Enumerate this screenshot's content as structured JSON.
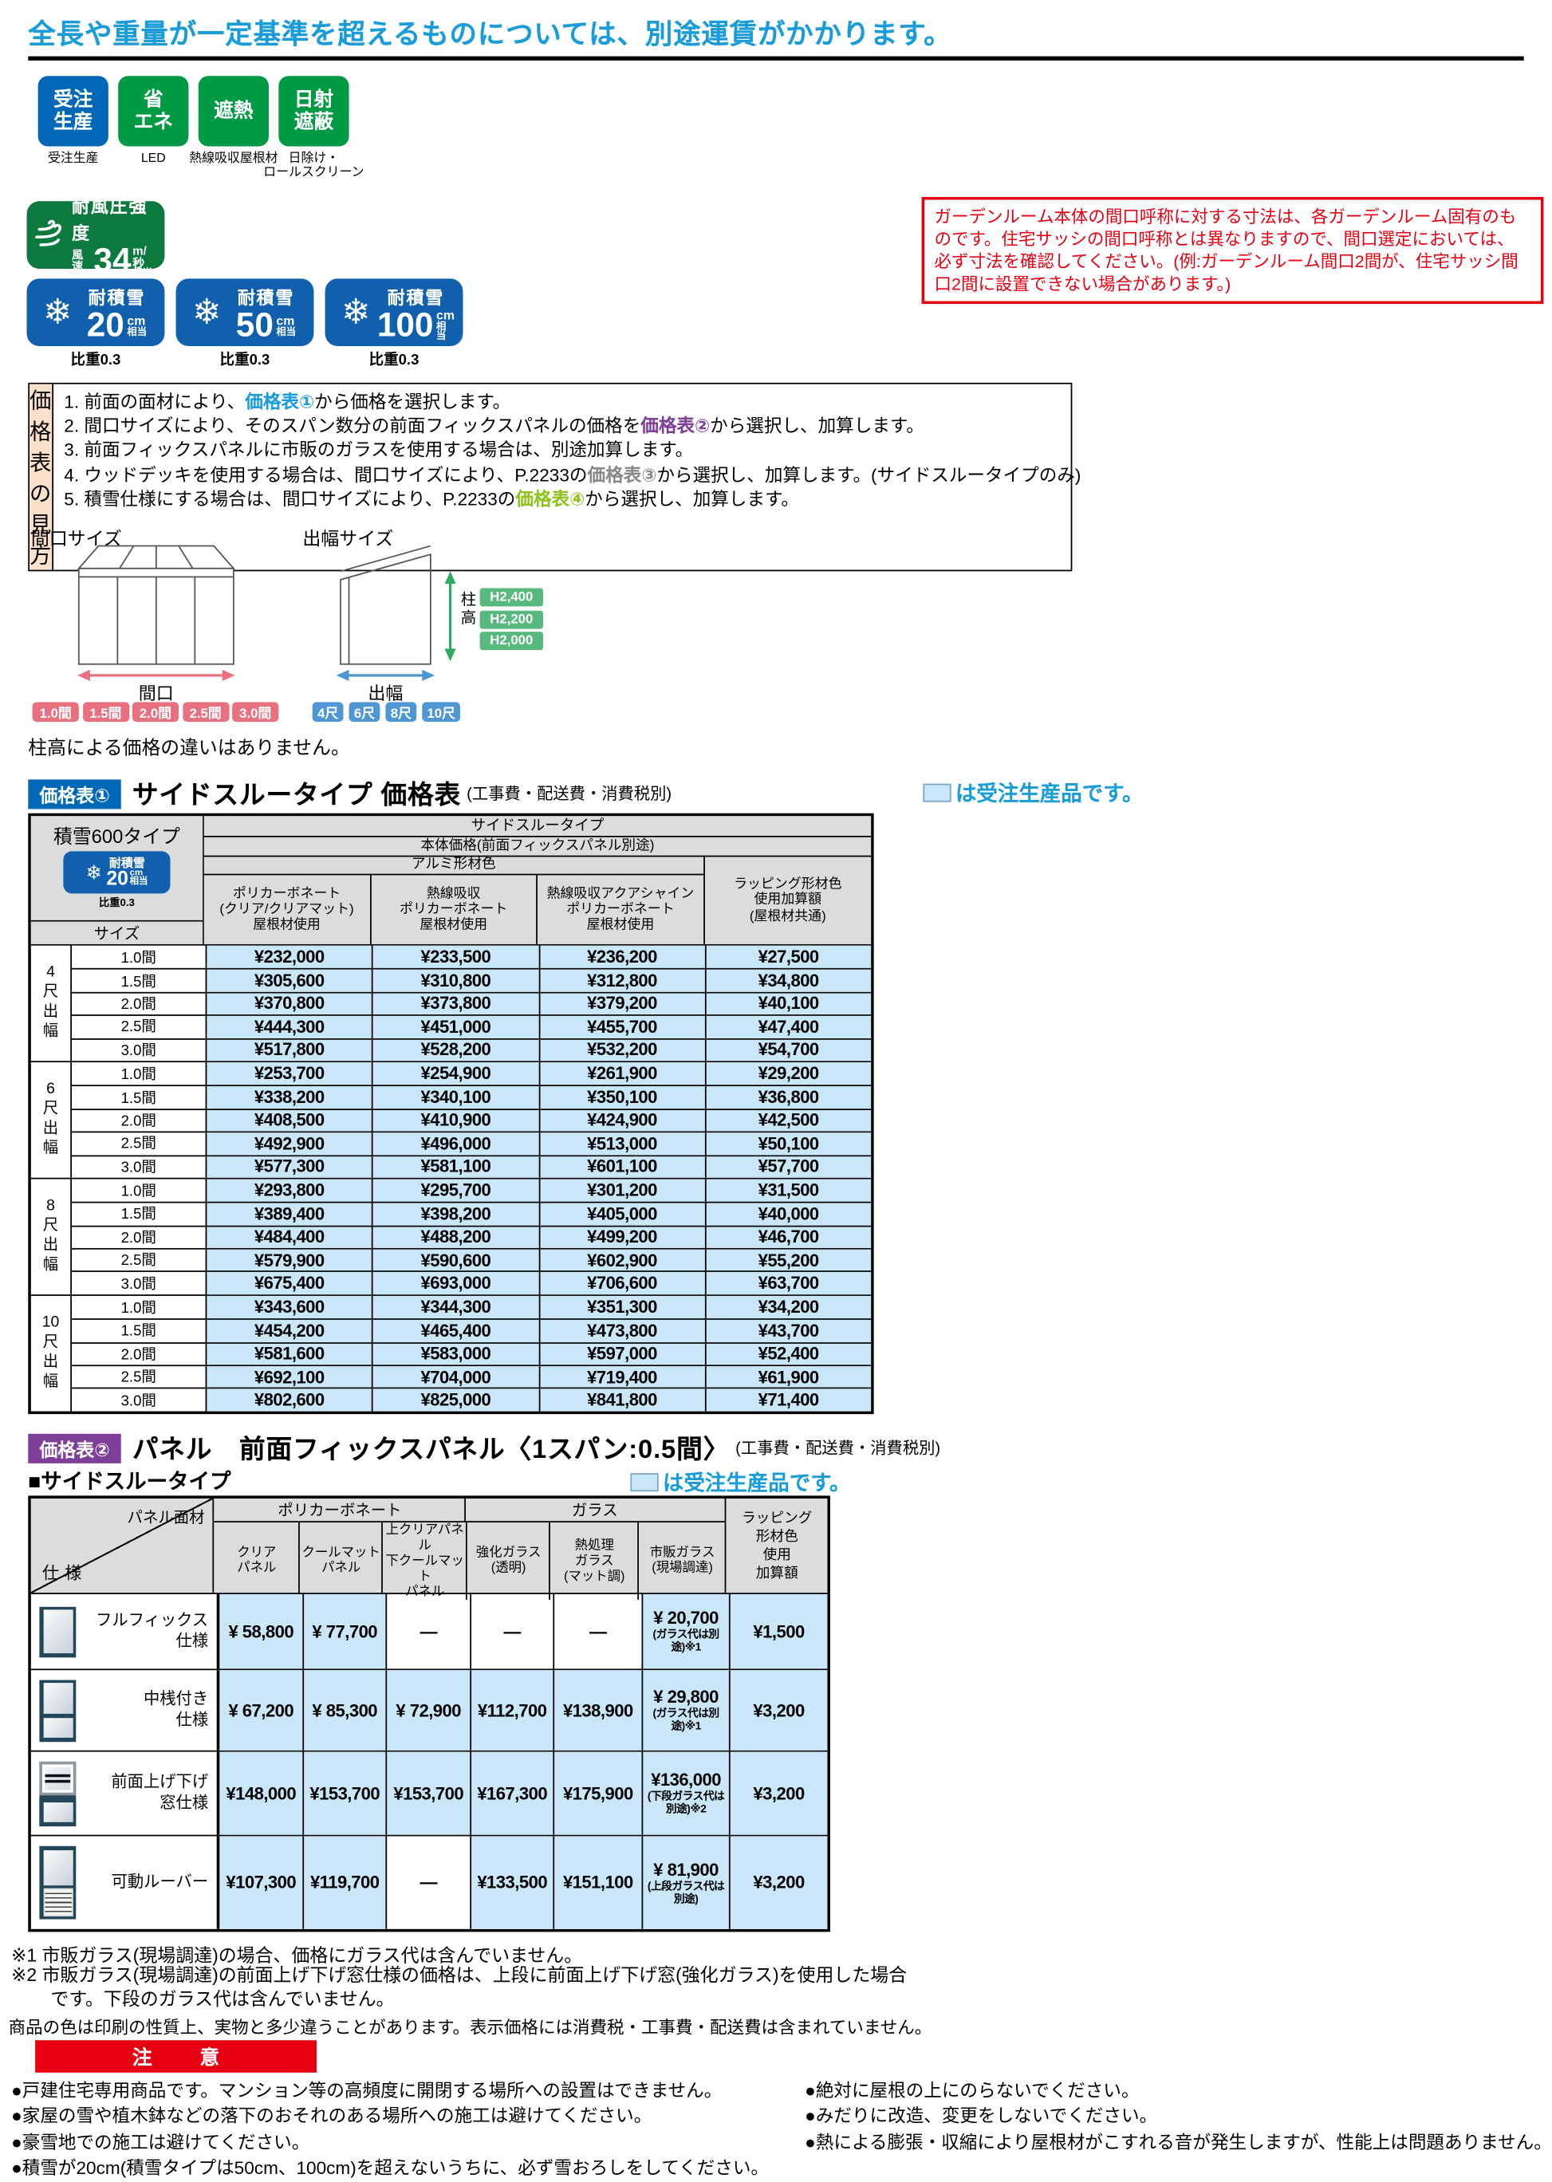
{
  "top_notice": "全長や重量が一定基準を超えるものについては、別途運賃がかかります。",
  "colors": {
    "accent_blue": "#1a9cd8",
    "badge_blue": "#0068b7",
    "badge_green": "#009944",
    "wind_green": "#0c7a3f",
    "snow_blue": "#1060ae",
    "made_to_order_bg": "#c9e7f8",
    "table_header_bg": "#dcdcdc",
    "notice_red": "#e60012",
    "guide_label_bg": "#fbe0ca",
    "chip_pink": "#e8707f",
    "chip_blue": "#4e97d3",
    "chip_green": "#57b97e",
    "badge_purple": "#7d3f98"
  },
  "features": [
    {
      "badge_lines": [
        "受注",
        "生産"
      ],
      "label_lines": [
        "受注生産"
      ],
      "color": "#0068b7"
    },
    {
      "badge_lines": [
        "省",
        "エネ"
      ],
      "label_lines": [
        "LED"
      ],
      "color": "#009944"
    },
    {
      "badge_lines": [
        "遮熱"
      ],
      "label_lines": [
        "熱線吸収屋根材"
      ],
      "color": "#009944"
    },
    {
      "badge_lines": [
        "日射",
        "遮蔽"
      ],
      "label_lines": [
        "日除け・",
        "ロールスクリーン"
      ],
      "color": "#009944"
    }
  ],
  "wind_badge": {
    "title": "耐風圧強度",
    "prefix": "風速",
    "value": "34",
    "unit": "m/秒",
    "suffix": "相当"
  },
  "warning_box": "ガーデンルーム本体の間口呼称に対する寸法は、各ガーデンルーム固有のものです。住宅サッシの間口呼称とは異なりますので、間口選定においては、必ず寸法を確認してください。(例:ガーデンルーム間口2間が、住宅サッシ間口2間に設置できない場合があります。)",
  "snow_badges": [
    {
      "title": "耐積雪",
      "value": "20",
      "unit": "cm",
      "suffix": "相当",
      "note": "比重0.3"
    },
    {
      "title": "耐積雪",
      "value": "50",
      "unit": "cm",
      "suffix": "相当",
      "note": "比重0.3"
    },
    {
      "title": "耐積雪",
      "value": "100",
      "unit": "cm",
      "suffix": "相当",
      "note": "比重0.3"
    }
  ],
  "guide": {
    "label": "価格表の見方",
    "lines": [
      [
        {
          "t": "1. 前面の面材により、"
        },
        {
          "t": "価格表①",
          "c": "#1a9cd8"
        },
        {
          "t": "から価格を選択します。"
        }
      ],
      [
        {
          "t": "2. 間口サイズにより、そのスパン数分の前面フィックスパネルの価格を"
        },
        {
          "t": "価格表②",
          "c": "#7d3f98"
        },
        {
          "t": "から選択し、加算します。"
        }
      ],
      [
        {
          "t": "3. 前面フィックスパネルに市販のガラスを使用する場合は、別途加算します。"
        }
      ],
      [
        {
          "t": "4. ウッドデッキを使用する場合は、間口サイズにより、P.2233の"
        },
        {
          "t": "価格表③",
          "c": "#898989"
        },
        {
          "t": "から選択し、加算します。(サイドスルータイプのみ)"
        }
      ],
      [
        {
          "t": "5. 積雪仕様にする場合は、間口サイズにより、P.2233の"
        },
        {
          "t": "価格表④",
          "c": "#8fc31f"
        },
        {
          "t": "から選択し、加算します。"
        }
      ]
    ]
  },
  "diagram": {
    "maguchi_title": "間口サイズ",
    "deba_title": "出幅サイズ",
    "maguchi_label": "間口",
    "deba_label": "出幅",
    "hashira_label": "柱高",
    "maguchi_chips": [
      "1.0間",
      "1.5間",
      "2.0間",
      "2.5間",
      "3.0間"
    ],
    "deba_chips": [
      "4尺",
      "6尺",
      "8尺",
      "10尺"
    ],
    "height_chips": [
      "H2,400",
      "H2,200",
      "H2,000"
    ],
    "note": "柱高による価格の違いはありません。"
  },
  "table1": {
    "badge": "価格表①",
    "title": "サイドスルータイプ 価格表",
    "title_note": "(工事費・配送費・消費税別)",
    "legend": "は受注生産品です。",
    "corner": "積雪600タイプ",
    "corner_note": "比重0.3",
    "mini_badge": {
      "title": "耐積雪",
      "value": "20",
      "unit": "cm",
      "suffix": "相当"
    },
    "size_label": "サイズ",
    "head_rows": [
      "サイドスルータイプ",
      "本体価格(前面フィックスパネル別途)",
      "アルミ形材色"
    ],
    "columns": [
      [
        "ポリカーボネート",
        "(クリア/クリアマット)",
        "屋根材使用"
      ],
      [
        "熱線吸収",
        "ポリカーボネート",
        "屋根材使用"
      ],
      [
        "熱線吸収アクアシャイン",
        "ポリカーボネート",
        "屋根材使用"
      ]
    ],
    "last_column": [
      "ラッピング形材色",
      "使用加算額",
      "(屋根材共通)"
    ],
    "groups": [
      {
        "label": [
          "4",
          "尺",
          "出",
          "幅"
        ],
        "rows": [
          {
            "size": "1.0間",
            "prices": [
              "¥232,000",
              "¥233,500",
              "¥236,200",
              "¥27,500"
            ]
          },
          {
            "size": "1.5間",
            "prices": [
              "¥305,600",
              "¥310,800",
              "¥312,800",
              "¥34,800"
            ]
          },
          {
            "size": "2.0間",
            "prices": [
              "¥370,800",
              "¥373,800",
              "¥379,200",
              "¥40,100"
            ]
          },
          {
            "size": "2.5間",
            "prices": [
              "¥444,300",
              "¥451,000",
              "¥455,700",
              "¥47,400"
            ]
          },
          {
            "size": "3.0間",
            "prices": [
              "¥517,800",
              "¥528,200",
              "¥532,200",
              "¥54,700"
            ]
          }
        ]
      },
      {
        "label": [
          "6",
          "尺",
          "出",
          "幅"
        ],
        "rows": [
          {
            "size": "1.0間",
            "prices": [
              "¥253,700",
              "¥254,900",
              "¥261,900",
              "¥29,200"
            ]
          },
          {
            "size": "1.5間",
            "prices": [
              "¥338,200",
              "¥340,100",
              "¥350,100",
              "¥36,800"
            ]
          },
          {
            "size": "2.0間",
            "prices": [
              "¥408,500",
              "¥410,900",
              "¥424,900",
              "¥42,500"
            ]
          },
          {
            "size": "2.5間",
            "prices": [
              "¥492,900",
              "¥496,000",
              "¥513,000",
              "¥50,100"
            ]
          },
          {
            "size": "3.0間",
            "prices": [
              "¥577,300",
              "¥581,100",
              "¥601,100",
              "¥57,700"
            ]
          }
        ]
      },
      {
        "label": [
          "8",
          "尺",
          "出",
          "幅"
        ],
        "rows": [
          {
            "size": "1.0間",
            "prices": [
              "¥293,800",
              "¥295,700",
              "¥301,200",
              "¥31,500"
            ]
          },
          {
            "size": "1.5間",
            "prices": [
              "¥389,400",
              "¥398,200",
              "¥405,000",
              "¥40,000"
            ]
          },
          {
            "size": "2.0間",
            "prices": [
              "¥484,400",
              "¥488,200",
              "¥499,200",
              "¥46,700"
            ]
          },
          {
            "size": "2.5間",
            "prices": [
              "¥579,900",
              "¥590,600",
              "¥602,900",
              "¥55,200"
            ]
          },
          {
            "size": "3.0間",
            "prices": [
              "¥675,400",
              "¥693,000",
              "¥706,600",
              "¥63,700"
            ]
          }
        ]
      },
      {
        "label": [
          "10",
          "尺",
          "出",
          "幅"
        ],
        "rows": [
          {
            "size": "1.0間",
            "prices": [
              "¥343,600",
              "¥344,300",
              "¥351,300",
              "¥34,200"
            ]
          },
          {
            "size": "1.5間",
            "prices": [
              "¥454,200",
              "¥465,400",
              "¥473,800",
              "¥43,700"
            ]
          },
          {
            "size": "2.0間",
            "prices": [
              "¥581,600",
              "¥583,000",
              "¥597,000",
              "¥52,400"
            ]
          },
          {
            "size": "2.5間",
            "prices": [
              "¥692,100",
              "¥704,000",
              "¥719,400",
              "¥61,900"
            ]
          },
          {
            "size": "3.0間",
            "prices": [
              "¥802,600",
              "¥825,000",
              "¥841,800",
              "¥71,400"
            ]
          }
        ]
      }
    ]
  },
  "table2": {
    "badge": "価格表②",
    "title": "パネル　前面フィックスパネル〈1スパン:0.5間〉",
    "title_note": "(工事費・配送費・消費税別)",
    "subhead": "■サイドスルータイプ",
    "legend": "は受注生産品です。",
    "corner_top": "パネル面材",
    "corner_bottom": "仕様",
    "group1": "ポリカーボネート",
    "group2": "ガラス",
    "sub_columns": [
      [
        "クリア",
        "パネル"
      ],
      [
        "クールマット",
        "パネル"
      ],
      [
        "上クリアパネル",
        "下クールマット",
        "パネル"
      ],
      [
        "強化ガラス",
        "(透明)"
      ],
      [
        "熱処理",
        "ガラス",
        "(マット調)"
      ],
      [
        "市販ガラス",
        "(現場調達)"
      ]
    ],
    "last_column": [
      "ラッピング",
      "形材色",
      "使用",
      "加算額"
    ],
    "rows": [
      {
        "icon": "full-fix-panel",
        "label_lines": [
          "フルフィックス",
          "仕様"
        ],
        "cells": [
          {
            "v": "¥ 58,800",
            "blue": true
          },
          {
            "v": "¥ 77,700",
            "blue": true
          },
          {
            "dash": true
          },
          {
            "dash": true
          },
          {
            "dash": true
          },
          {
            "v": "¥ 20,700",
            "sub": "(ガラス代は別途)※1",
            "blue": true
          },
          {
            "v": "¥1,500",
            "blue": true
          }
        ]
      },
      {
        "icon": "mid-rail-panel",
        "label_lines": [
          "中桟付き",
          "仕様"
        ],
        "cells": [
          {
            "v": "¥ 67,200",
            "blue": true
          },
          {
            "v": "¥ 85,300",
            "blue": true
          },
          {
            "v": "¥ 72,900",
            "blue": true
          },
          {
            "v": "¥112,700",
            "blue": true
          },
          {
            "v": "¥138,900",
            "blue": true
          },
          {
            "v": "¥ 29,800",
            "sub": "(ガラス代は別途)※1",
            "blue": true
          },
          {
            "v": "¥3,200",
            "blue": true
          }
        ]
      },
      {
        "icon": "sash-window-panel",
        "label_lines": [
          "前面上げ下げ",
          "窓仕様"
        ],
        "cells": [
          {
            "v": "¥148,000",
            "blue": true
          },
          {
            "v": "¥153,700",
            "blue": true
          },
          {
            "v": "¥153,700",
            "blue": true
          },
          {
            "v": "¥167,300",
            "blue": true
          },
          {
            "v": "¥175,900",
            "blue": true
          },
          {
            "v": "¥136,000",
            "sub": "(下段ガラス代は別途)※2",
            "blue": true
          },
          {
            "v": "¥3,200",
            "blue": true
          }
        ]
      },
      {
        "icon": "louver-panel",
        "label_lines": [
          "可動ルーバー"
        ],
        "cells": [
          {
            "v": "¥107,300",
            "blue": true
          },
          {
            "v": "¥119,700",
            "blue": true
          },
          {
            "dash": true
          },
          {
            "v": "¥133,500",
            "blue": true
          },
          {
            "v": "¥151,100",
            "blue": true
          },
          {
            "v": "¥ 81,900",
            "sub": "(上段ガラス代は別途)",
            "blue": true
          },
          {
            "v": "¥3,200",
            "blue": true
          }
        ]
      }
    ]
  },
  "footnotes": {
    "note1": "※1 市販ガラス(現場調達)の場合、価格にガラス代は含んでいません。",
    "note2": "※2 市販ガラス(現場調達)の前面上げ下げ窓仕様の価格は、上段に前面上げ下げ窓(強化ガラス)を使用した場合です。下段のガラス代は含んでいません。",
    "color_note": "商品の色は印刷の性質上、実物と多少違うことがあります。表示価格には消費税・工事費・配送費は含まれていません。"
  },
  "caution": {
    "label": "注　意",
    "left": [
      "●戸建住宅専用商品です。マンション等の高頻度に開閉する場所への設置はできません。",
      "●家屋の雪や植木鉢などの落下のおそれのある場所への施工は避けてください。",
      "●豪雪地での施工は避けてください。",
      "●積雪が20cm(積雪タイプは50cm、100cm)を超えないうちに、必ず雪おろしをしてください。"
    ],
    "right": [
      "●絶対に屋根の上にのらないでください。",
      "●みだりに改造、変更をしないでください。",
      "●熱による膨張・収縮により屋根材がこすれる音が発生しますが、性能上は問題ありません。"
    ]
  }
}
